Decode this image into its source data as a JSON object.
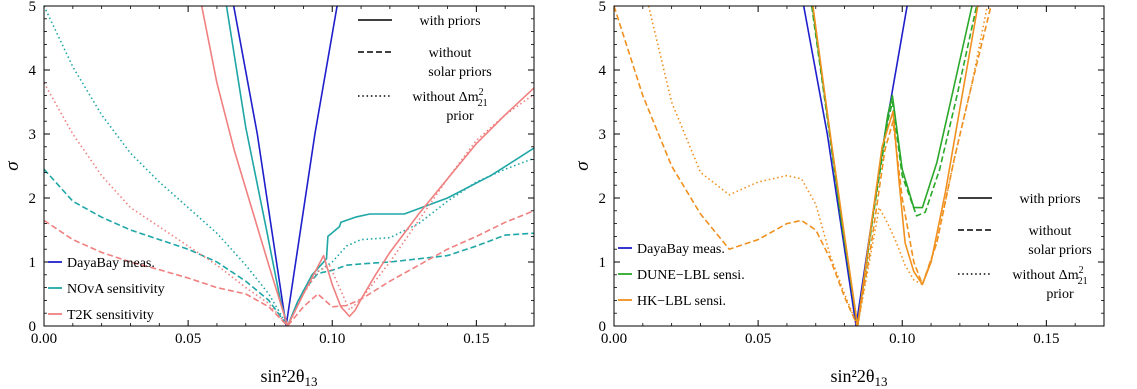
{
  "chart_data": [
    {
      "type": "line",
      "xlabel": "sin²2θ",
      "xlabel_sub": "13",
      "ylabel": "σ",
      "xlim": [
        0.0,
        0.17
      ],
      "ylim": [
        0,
        5
      ],
      "xticks": [
        0.0,
        0.05,
        0.1,
        0.15
      ],
      "xtick_labels": [
        "0.00",
        "0.05",
        "0.10",
        "0.15"
      ],
      "yticks": [
        0,
        1,
        2,
        3,
        4,
        5
      ],
      "ytick_labels": [
        "0",
        "1",
        "2",
        "3",
        "4",
        "5"
      ],
      "legend_colors": {
        "position": "bottom-left",
        "entries": [
          {
            "label": "DayaBay meas.",
            "color": "#1f1fcc"
          },
          {
            "label": "NOvA sensitivity",
            "color": "#1fa6a6"
          },
          {
            "label": "T2K sensitivity",
            "color": "#f08080"
          }
        ]
      },
      "legend_styles": {
        "position": "top-right",
        "entries": [
          {
            "lines": [
              "with priors"
            ],
            "dash": "solid"
          },
          {
            "lines": [
              "without",
              "solar priors"
            ],
            "dash": "dashed"
          },
          {
            "lines": [
              "without Δm",
              "prior"
            ],
            "dash": "dotted",
            "sup": "2",
            "sub": "21"
          }
        ]
      },
      "series": [
        {
          "legend": "DayaBay meas.",
          "color": "#1f1fcc",
          "dash": "solid",
          "x": [
            0.0658,
            0.074,
            0.079,
            0.084,
            0.089,
            0.094,
            0.1017
          ],
          "y": [
            5,
            3,
            1.5,
            0,
            1.5,
            3,
            5
          ]
        },
        {
          "legend": "NOvA sensitivity",
          "color": "#1fa6a6",
          "dash": "solid",
          "x": [
            0.0633,
            0.07,
            0.077,
            0.082,
            0.0845,
            0.088,
            0.093,
            0.098,
            0.0985,
            0.1025,
            0.103,
            0.108,
            0.113,
            0.125,
            0.14,
            0.155,
            0.17
          ],
          "y": [
            5,
            3.1,
            1.55,
            0.4,
            0.0,
            0.38,
            0.8,
            1.05,
            1.4,
            1.55,
            1.62,
            1.7,
            1.75,
            1.75,
            2.0,
            2.35,
            2.78
          ]
        },
        {
          "legend": "NOvA sensitivity",
          "color": "#1fa6a6",
          "dash": "dashed",
          "x": [
            0.0,
            0.01,
            0.02,
            0.03,
            0.04,
            0.05,
            0.06,
            0.07,
            0.078,
            0.0845,
            0.09,
            0.095,
            0.1,
            0.105,
            0.11,
            0.12,
            0.13,
            0.14,
            0.15,
            0.16,
            0.17
          ],
          "y": [
            2.45,
            1.95,
            1.7,
            1.5,
            1.35,
            1.2,
            1.0,
            0.7,
            0.4,
            0.0,
            0.55,
            0.82,
            0.87,
            0.95,
            0.97,
            1.0,
            1.05,
            1.1,
            1.25,
            1.42,
            1.45
          ]
        },
        {
          "legend": "NOvA sensitivity",
          "color": "#1fa6a6",
          "dash": "dotted",
          "x": [
            0.0,
            0.01,
            0.02,
            0.03,
            0.04,
            0.05,
            0.06,
            0.07,
            0.078,
            0.0845,
            0.09,
            0.095,
            0.1,
            0.105,
            0.11,
            0.12,
            0.13,
            0.14,
            0.15,
            0.16,
            0.17
          ],
          "y": [
            5.0,
            4.05,
            3.3,
            2.7,
            2.25,
            1.85,
            1.45,
            0.95,
            0.5,
            0.0,
            0.55,
            0.85,
            1.0,
            1.25,
            1.35,
            1.38,
            1.6,
            1.95,
            2.25,
            2.45,
            2.62
          ]
        },
        {
          "legend": "T2K sensitivity",
          "color": "#f08080",
          "dash": "solid",
          "x": [
            0.0547,
            0.06,
            0.066,
            0.072,
            0.078,
            0.0845,
            0.09,
            0.097,
            0.1,
            0.103,
            0.106,
            0.108,
            0.11,
            0.115,
            0.12,
            0.13,
            0.14,
            0.15,
            0.16,
            0.17
          ],
          "y": [
            5.0,
            3.8,
            2.75,
            1.85,
            0.95,
            0.0,
            0.5,
            1.1,
            0.65,
            0.3,
            0.15,
            0.25,
            0.42,
            0.8,
            1.15,
            1.75,
            2.3,
            2.85,
            3.3,
            3.72
          ]
        },
        {
          "legend": "T2K sensitivity",
          "color": "#f08080",
          "dash": "dashed",
          "x": [
            0.0,
            0.01,
            0.02,
            0.03,
            0.04,
            0.05,
            0.06,
            0.07,
            0.078,
            0.0845,
            0.09,
            0.095,
            0.1,
            0.105,
            0.11,
            0.12,
            0.13,
            0.14,
            0.15,
            0.16,
            0.17
          ],
          "y": [
            1.65,
            1.35,
            1.15,
            1.0,
            0.88,
            0.75,
            0.6,
            0.5,
            0.3,
            0.0,
            0.3,
            0.5,
            0.3,
            0.32,
            0.42,
            0.7,
            0.95,
            1.2,
            1.4,
            1.62,
            1.8
          ]
        },
        {
          "legend": "T2K sensitivity",
          "color": "#f08080",
          "dash": "dotted",
          "x": [
            0.0,
            0.01,
            0.02,
            0.03,
            0.04,
            0.05,
            0.06,
            0.07,
            0.078,
            0.0845,
            0.09,
            0.095,
            0.099,
            0.103,
            0.106,
            0.11,
            0.12,
            0.13,
            0.14,
            0.15,
            0.16,
            0.17
          ],
          "y": [
            3.8,
            3.0,
            2.35,
            1.85,
            1.55,
            1.25,
            0.95,
            0.6,
            0.35,
            0.0,
            0.5,
            0.85,
            0.95,
            0.55,
            0.25,
            0.42,
            1.0,
            1.65,
            2.3,
            2.9,
            3.3,
            3.62
          ]
        }
      ]
    },
    {
      "type": "line",
      "xlabel": "sin²2θ",
      "xlabel_sub": "13",
      "ylabel": "σ",
      "xlim": [
        0.0,
        0.17
      ],
      "ylim": [
        0,
        5
      ],
      "xticks": [
        0.0,
        0.05,
        0.1,
        0.15
      ],
      "xtick_labels": [
        "0.00",
        "0.05",
        "0.10",
        "0.15"
      ],
      "yticks": [
        0,
        1,
        2,
        3,
        4,
        5
      ],
      "ytick_labels": [
        "0",
        "1",
        "2",
        "3",
        "4",
        "5"
      ],
      "legend_colors": {
        "position": "bottom-left",
        "entries": [
          {
            "label": "DayaBay meas.",
            "color": "#1f1fcc"
          },
          {
            "label": "DUNE−LBL sensi.",
            "color": "#2aa82a"
          },
          {
            "label": "HK−LBL sensi.",
            "color": "#f0901e"
          }
        ]
      },
      "legend_styles": {
        "position": "bottom-right",
        "entries": [
          {
            "lines": [
              "with priors"
            ],
            "dash": "solid"
          },
          {
            "lines": [
              "without",
              "solar priors"
            ],
            "dash": "dashed"
          },
          {
            "lines": [
              "without Δm",
              "prior"
            ],
            "dash": "dotted",
            "sup": "2",
            "sub": "21"
          }
        ]
      },
      "series": [
        {
          "legend": "DayaBay meas.",
          "color": "#1f1fcc",
          "dash": "solid",
          "x": [
            0.0658,
            0.074,
            0.079,
            0.084,
            0.089,
            0.094,
            0.1017
          ],
          "y": [
            5,
            3,
            1.5,
            0,
            1.5,
            3,
            5
          ]
        },
        {
          "legend": "DUNE−LBL sensi.",
          "color": "#2aa82a",
          "dash": "solid",
          "x": [
            0.0688,
            0.074,
            0.079,
            0.0845,
            0.09,
            0.095,
            0.0966,
            0.1,
            0.104,
            0.107,
            0.112,
            0.118,
            0.1242
          ],
          "y": [
            5.0,
            3.3,
            1.65,
            0.0,
            1.8,
            3.3,
            3.6,
            2.45,
            1.85,
            1.85,
            2.55,
            3.75,
            5.0
          ]
        },
        {
          "legend": "DUNE−LBL sensi.",
          "color": "#2aa82a",
          "dash": "dashed",
          "x": [
            0.0686,
            0.074,
            0.079,
            0.0845,
            0.09,
            0.095,
            0.0966,
            0.1,
            0.105,
            0.108,
            0.113,
            0.119,
            0.1258
          ],
          "y": [
            5.0,
            3.25,
            1.6,
            0.0,
            1.75,
            3.2,
            3.5,
            2.35,
            1.72,
            1.78,
            2.45,
            3.6,
            5.0
          ]
        },
        {
          "legend": "HK−LBL sensi.",
          "color": "#f0901e",
          "dash": "solid",
          "x": [
            0.069,
            0.075,
            0.08,
            0.0845,
            0.089,
            0.093,
            0.0968,
            0.099,
            0.101,
            0.104,
            0.107,
            0.11,
            0.115,
            0.12,
            0.1262
          ],
          "y": [
            5.0,
            3.0,
            1.4,
            0.0,
            1.5,
            2.8,
            3.35,
            2.2,
            1.3,
            0.85,
            0.65,
            1.0,
            2.1,
            3.4,
            5.0
          ]
        },
        {
          "legend": "HK−LBL sensi.",
          "color": "#f0901e",
          "dash": "dashed",
          "x": [
            0.0,
            0.01,
            0.02,
            0.03,
            0.04,
            0.05,
            0.06,
            0.065,
            0.07,
            0.075,
            0.08,
            0.0845,
            0.089,
            0.094,
            0.0968,
            0.1,
            0.104,
            0.107,
            0.112,
            0.118,
            0.124,
            0.1308
          ],
          "y": [
            5.0,
            3.6,
            2.5,
            1.75,
            1.2,
            1.35,
            1.6,
            1.65,
            1.5,
            1.05,
            0.45,
            0.0,
            1.2,
            2.75,
            3.2,
            2.0,
            1.0,
            0.65,
            1.3,
            2.6,
            3.75,
            5.0
          ]
        },
        {
          "legend": "HK−LBL sensi.",
          "color": "#f0901e",
          "dash": "dotted",
          "x": [
            0.012,
            0.02,
            0.03,
            0.04,
            0.05,
            0.06,
            0.065,
            0.07,
            0.075,
            0.08,
            0.0845,
            0.089,
            0.092,
            0.095,
            0.098,
            0.101,
            0.104,
            0.107,
            0.112,
            0.118,
            0.124,
            0.1295
          ],
          "y": [
            5.0,
            3.5,
            2.4,
            2.05,
            2.25,
            2.35,
            2.3,
            1.9,
            1.1,
            0.5,
            0.0,
            1.1,
            1.85,
            1.6,
            1.3,
            0.95,
            0.72,
            0.65,
            1.3,
            2.6,
            3.75,
            5.0
          ]
        }
      ]
    }
  ]
}
